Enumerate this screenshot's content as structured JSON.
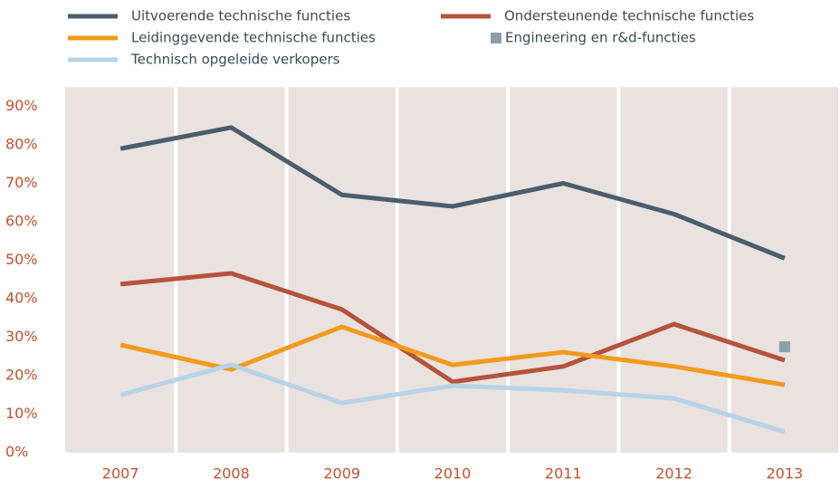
{
  "chart_data": {
    "type": "line",
    "categories": [
      "2007",
      "2008",
      "2009",
      "2010",
      "2011",
      "2012",
      "2013"
    ],
    "series": [
      {
        "name": "Uitvoerende technische functies",
        "color": "#4a5e6b",
        "values": [
          79,
          84.5,
          67,
          64,
          70,
          62,
          50.5
        ]
      },
      {
        "name": "Ondersteunende technische functies",
        "color": "#b5533c",
        "values": [
          43.8,
          46.6,
          37.2,
          18.4,
          22.4,
          33.4,
          24
        ]
      },
      {
        "name": "Leidinggevende technische functies",
        "color": "#f29b1d",
        "values": [
          28,
          21.6,
          32.7,
          22.8,
          26.1,
          22.4,
          17.6
        ]
      },
      {
        "name": "Engineering en r&d-functies",
        "color": "#8c9ea9",
        "marker": "square",
        "values": [
          null,
          null,
          null,
          null,
          null,
          null,
          27.5
        ]
      },
      {
        "name": "Technisch opgeleide verkopers",
        "color": "#b8d4e6",
        "values": [
          15,
          22.8,
          12.9,
          17.4,
          16.2,
          14.1,
          5.4
        ]
      }
    ],
    "ylim": [
      0,
      95
    ],
    "yticks": [
      {
        "value": 0,
        "label": "0%"
      },
      {
        "value": 10,
        "label": "10%"
      },
      {
        "value": 20,
        "label": "20%"
      },
      {
        "value": 30,
        "label": "30%"
      },
      {
        "value": 40,
        "label": "40%"
      },
      {
        "value": 50,
        "label": "50%"
      },
      {
        "value": 60,
        "label": "60%"
      },
      {
        "value": 70,
        "label": "70%"
      },
      {
        "value": 80,
        "label": "80%"
      },
      {
        "value": 90,
        "label": "90%"
      }
    ],
    "band_color": "#e9e2df"
  }
}
